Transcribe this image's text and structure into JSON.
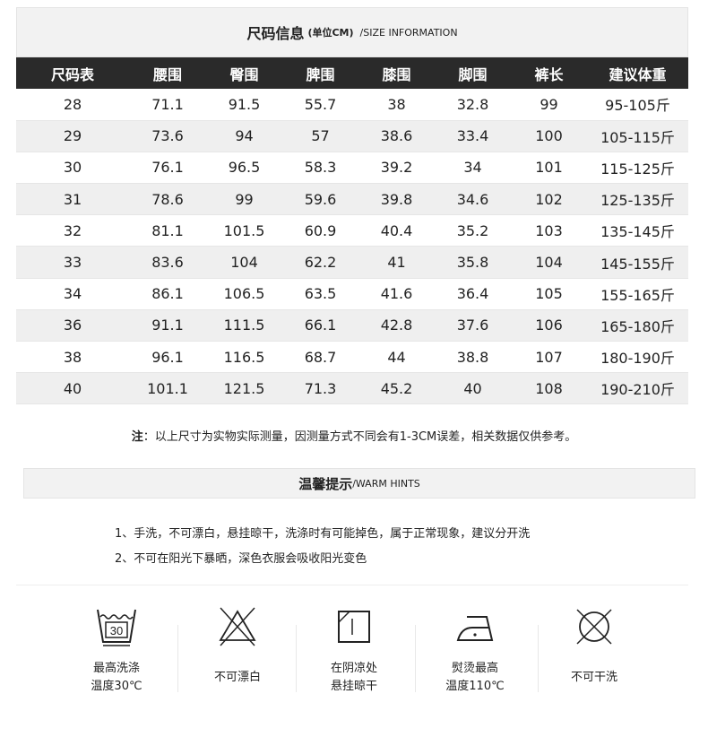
{
  "title": {
    "main": "尺码信息",
    "unit": "(单位CM)",
    "en": "/SIZE INFORMATION"
  },
  "table": {
    "headers": [
      "尺码表",
      "腰围",
      "臀围",
      "脾围",
      "膝围",
      "脚围",
      "裤长",
      "建议体重"
    ],
    "rows": [
      [
        "28",
        "71.1",
        "91.5",
        "55.7",
        "38",
        "32.8",
        "99",
        "95-105斤"
      ],
      [
        "29",
        "73.6",
        "94",
        "57",
        "38.6",
        "33.4",
        "100",
        "105-115斤"
      ],
      [
        "30",
        "76.1",
        "96.5",
        "58.3",
        "39.2",
        "34",
        "101",
        "115-125斤"
      ],
      [
        "31",
        "78.6",
        "99",
        "59.6",
        "39.8",
        "34.6",
        "102",
        "125-135斤"
      ],
      [
        "32",
        "81.1",
        "101.5",
        "60.9",
        "40.4",
        "35.2",
        "103",
        "135-145斤"
      ],
      [
        "33",
        "83.6",
        "104",
        "62.2",
        "41",
        "35.8",
        "104",
        "145-155斤"
      ],
      [
        "34",
        "86.1",
        "106.5",
        "63.5",
        "41.6",
        "36.4",
        "105",
        "155-165斤"
      ],
      [
        "36",
        "91.1",
        "111.5",
        "66.1",
        "42.8",
        "37.6",
        "106",
        "165-180斤"
      ],
      [
        "38",
        "96.1",
        "116.5",
        "68.7",
        "44",
        "38.8",
        "107",
        "180-190斤"
      ],
      [
        "40",
        "101.1",
        "121.5",
        "71.3",
        "45.2",
        "40",
        "108",
        "190-210斤"
      ]
    ]
  },
  "note": {
    "label": "注",
    "text": "：以上尺寸为实物实际测量，因测量方式不同会有1-3CM误差，相关数据仅供参考。"
  },
  "hints": {
    "main": "温馨提示",
    "en": "/WARM HINTS",
    "lines": [
      "1、手洗，不可漂白，悬挂晾干，洗涤时有可能掉色，属于正常现象，建议分开洗",
      "2、不可在阳光下暴晒，深色衣服会吸收阳光变色"
    ]
  },
  "care": [
    {
      "icon": "wash-30-icon",
      "tub_text": "30",
      "lines": [
        "最高洗涤",
        "温度30℃"
      ]
    },
    {
      "icon": "no-bleach-icon",
      "lines": [
        "不可漂白"
      ]
    },
    {
      "icon": "line-dry-shade-icon",
      "lines": [
        "在阴凉处",
        "悬挂晾干"
      ]
    },
    {
      "icon": "iron-low-icon",
      "lines": [
        "熨烫最高",
        "温度110℃"
      ]
    },
    {
      "icon": "no-dry-clean-icon",
      "lines": [
        "不可干洗"
      ]
    }
  ]
}
